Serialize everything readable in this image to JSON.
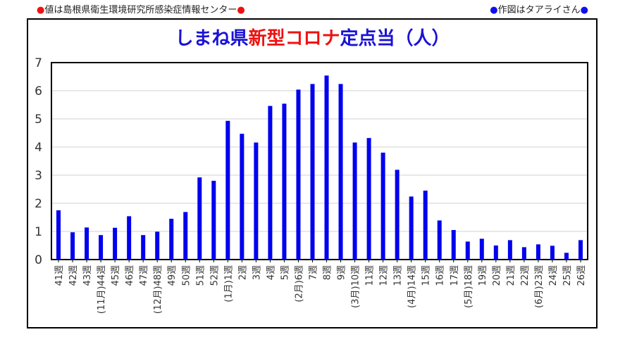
{
  "header": {
    "left_note": "値は島根県衛生環境研究所感染症情報センター",
    "right_note": "作図はタアライさん",
    "left_dot_color": "#ee1111",
    "right_dot_color": "#1010ee"
  },
  "title_parts": {
    "part1": "しまね県",
    "part2": "新型コロナ",
    "part3": "定点当（人）"
  },
  "chart_data": {
    "type": "bar",
    "title": "しまね県新型コロナ定点当（人）",
    "xlabel": "",
    "ylabel": "",
    "ylim": [
      0,
      7
    ],
    "yticks": [
      0,
      1,
      2,
      3,
      4,
      5,
      6,
      7
    ],
    "grid": true,
    "bar_color": "#0000ee",
    "categories": [
      "41週",
      "42週",
      "43週",
      "(11月)44週",
      "45週",
      "46週",
      "47週",
      "(12月)48週",
      "49週",
      "50週",
      "51週",
      "52週",
      "(1月)1週",
      "2週",
      "3週",
      "4週",
      "5週",
      "(2月)6週",
      "7週",
      "8週",
      "9週",
      "(3月)10週",
      "11週",
      "12週",
      "13週",
      "(4月)14週",
      "15週",
      "16週",
      "17週",
      "(5月)18週",
      "19週",
      "20週",
      "21週",
      "22週",
      "(6月)23週",
      "24週",
      "25週",
      "26週"
    ],
    "values": [
      1.75,
      0.97,
      1.14,
      0.87,
      1.13,
      1.54,
      0.87,
      0.99,
      1.45,
      1.69,
      2.92,
      2.8,
      4.93,
      4.47,
      4.16,
      5.46,
      5.54,
      6.04,
      6.24,
      6.54,
      6.24,
      4.16,
      4.32,
      3.8,
      3.19,
      2.24,
      2.45,
      1.39,
      1.05,
      0.64,
      0.74,
      0.5,
      0.69,
      0.44,
      0.54,
      0.49,
      0.24,
      0.69
    ]
  }
}
